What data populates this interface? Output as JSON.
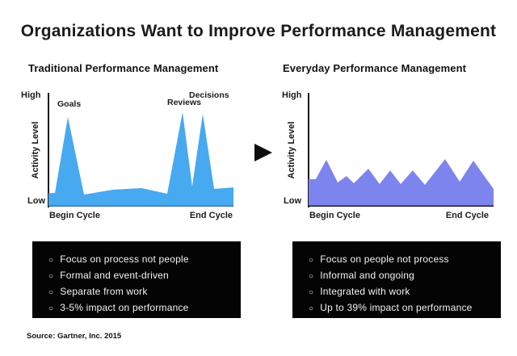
{
  "page": {
    "title": "Organizations Want to Improve Performance Management",
    "source": "Source: Gartner, Inc. 2015"
  },
  "icons": {
    "arrow_right_icon": "right-pointing-triangle",
    "bullet_icon": "○"
  },
  "chart_data": [
    {
      "type": "area",
      "title": "Traditional Performance Management",
      "color": "#47a9f0",
      "baseline_color": "#3a78ab",
      "ylabel": "Activity Level",
      "yticks": [
        "High",
        "Low"
      ],
      "xticks": [
        "Begin Cycle",
        "End Cycle"
      ],
      "ylim": [
        "Low (0)",
        "High (100)"
      ],
      "x_units": "percent of cycle from Begin Cycle to End Cycle",
      "points": [
        [
          0,
          12.1
        ],
        [
          3.5,
          12.1
        ],
        [
          10.5,
          79.3
        ],
        [
          19.2,
          10.7
        ],
        [
          34.9,
          15.0
        ],
        [
          50.2,
          16.4
        ],
        [
          64.2,
          11.4
        ],
        [
          72.5,
          83.6
        ],
        [
          77.7,
          17.9
        ],
        [
          83.4,
          82.1
        ],
        [
          89.5,
          15.7
        ],
        [
          100,
          17.1
        ]
      ],
      "annotations": [
        {
          "label": "Goals",
          "x": 10.5
        },
        {
          "label": "Reviews",
          "x": 72.5
        },
        {
          "label": "Decisions",
          "x": 83.4
        }
      ]
    },
    {
      "type": "area",
      "title": "Everyday Performance Management",
      "color": "#7d84ee",
      "baseline_color": "#1c1c1c",
      "ylabel": "Activity Level",
      "yticks": [
        "High",
        "Low"
      ],
      "xticks": [
        "Begin Cycle",
        "End Cycle"
      ],
      "ylim": [
        "Low (0)",
        "High (100)"
      ],
      "x_units": "percent of cycle from Begin Cycle to End Cycle",
      "points": [
        [
          0,
          24.3
        ],
        [
          3.9,
          24.3
        ],
        [
          9.6,
          41.4
        ],
        [
          15.7,
          21.4
        ],
        [
          20.5,
          27.1
        ],
        [
          24.5,
          20.7
        ],
        [
          32.3,
          33.6
        ],
        [
          38.4,
          20.0
        ],
        [
          44.1,
          32.1
        ],
        [
          49.8,
          20.0
        ],
        [
          56.3,
          32.1
        ],
        [
          62.9,
          19.3
        ],
        [
          73.8,
          42.1
        ],
        [
          81.7,
          22.1
        ],
        [
          89.1,
          40.7
        ],
        [
          96.5,
          23.6
        ],
        [
          100,
          15.7
        ]
      ],
      "annotations": []
    }
  ],
  "panels": [
    {
      "bullets": [
        "Focus on process not people",
        "Formal and event-driven",
        "Separate from work",
        "3-5% impact on performance"
      ]
    },
    {
      "bullets": [
        "Focus on people not process",
        "Informal and ongoing",
        "Integrated with work",
        "Up to 39% impact on performance"
      ]
    }
  ]
}
